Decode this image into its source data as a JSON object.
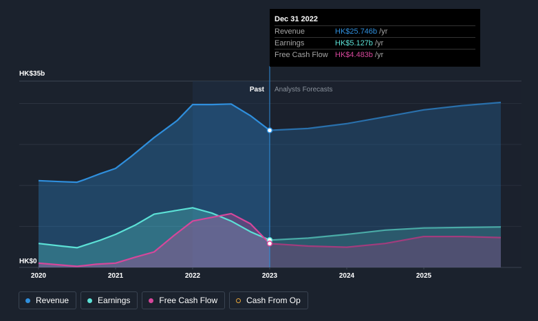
{
  "chart_data": {
    "type": "area",
    "y_axis": {
      "min": 0,
      "max": 35,
      "top_label": "HK$35b",
      "bottom_label": "HK$0"
    },
    "x_axis": {
      "min": 2020,
      "max": 2026,
      "ticks": [
        "2020",
        "2021",
        "2022",
        "2023",
        "2024",
        "2025"
      ]
    },
    "divider_x": 2023,
    "past_label": "Past",
    "forecast_label": "Analysts Forecasts",
    "grid": true,
    "series": [
      {
        "key": "revenue",
        "name": "Revenue",
        "color": "#2f8fdd",
        "points": [
          [
            2020,
            16.3
          ],
          [
            2020.3,
            16.1
          ],
          [
            2020.5,
            16.0
          ],
          [
            2020.6,
            16.5
          ],
          [
            2020.8,
            17.6
          ],
          [
            2021.0,
            18.6
          ],
          [
            2021.2,
            20.8
          ],
          [
            2021.5,
            24.4
          ],
          [
            2021.8,
            27.6
          ],
          [
            2022.0,
            30.6
          ],
          [
            2022.25,
            30.6
          ],
          [
            2022.5,
            30.7
          ],
          [
            2022.75,
            28.5
          ],
          [
            2023.0,
            25.75
          ],
          [
            2023.5,
            26.1
          ],
          [
            2024.0,
            27.0
          ],
          [
            2024.5,
            28.3
          ],
          [
            2025.0,
            29.6
          ],
          [
            2025.5,
            30.4
          ],
          [
            2026.0,
            31.0
          ]
        ]
      },
      {
        "key": "earnings",
        "name": "Earnings",
        "color": "#5ce1d6",
        "points": [
          [
            2020,
            4.5
          ],
          [
            2020.3,
            4.0
          ],
          [
            2020.5,
            3.7
          ],
          [
            2020.8,
            5.1
          ],
          [
            2021.0,
            6.2
          ],
          [
            2021.25,
            7.9
          ],
          [
            2021.5,
            10.0
          ],
          [
            2021.75,
            10.6
          ],
          [
            2022.0,
            11.2
          ],
          [
            2022.25,
            10.2
          ],
          [
            2022.5,
            8.7
          ],
          [
            2022.75,
            6.7
          ],
          [
            2023.0,
            5.13
          ],
          [
            2023.5,
            5.5
          ],
          [
            2024.0,
            6.2
          ],
          [
            2024.5,
            7.0
          ],
          [
            2025.0,
            7.4
          ],
          [
            2025.5,
            7.5
          ],
          [
            2026.0,
            7.6
          ]
        ]
      },
      {
        "key": "fcf",
        "name": "Free Cash Flow",
        "color": "#d6479b",
        "points": [
          [
            2020,
            0.8
          ],
          [
            2020.25,
            0.5
          ],
          [
            2020.5,
            0.2
          ],
          [
            2020.75,
            0.6
          ],
          [
            2021.0,
            0.8
          ],
          [
            2021.25,
            1.9
          ],
          [
            2021.5,
            2.9
          ],
          [
            2021.75,
            5.9
          ],
          [
            2022.0,
            8.7
          ],
          [
            2022.25,
            9.4
          ],
          [
            2022.5,
            10.1
          ],
          [
            2022.75,
            8.2
          ],
          [
            2023.0,
            4.48
          ],
          [
            2023.5,
            4.0
          ],
          [
            2024.0,
            3.8
          ],
          [
            2024.5,
            4.5
          ],
          [
            2025.0,
            5.8
          ],
          [
            2025.5,
            5.8
          ],
          [
            2026.0,
            5.6
          ]
        ]
      }
    ],
    "cash_from_op": {
      "name": "Cash From Op",
      "color": "#e8a63a"
    }
  },
  "tooltip": {
    "date": "Dec 31 2022",
    "rows": [
      {
        "name": "Revenue",
        "value": "HK$25.746b",
        "unit": "/yr",
        "color": "#2f8fdd"
      },
      {
        "name": "Earnings",
        "value": "HK$5.127b",
        "unit": "/yr",
        "color": "#5ce1d6"
      },
      {
        "name": "Free Cash Flow",
        "value": "HK$4.483b",
        "unit": "/yr",
        "color": "#d6479b"
      }
    ]
  },
  "legend": [
    {
      "label": "Revenue",
      "color": "#2f8fdd",
      "hollow": false
    },
    {
      "label": "Earnings",
      "color": "#5ce1d6",
      "hollow": false
    },
    {
      "label": "Free Cash Flow",
      "color": "#d6479b",
      "hollow": false
    },
    {
      "label": "Cash From Op",
      "color": "#e8a63a",
      "hollow": true
    }
  ]
}
